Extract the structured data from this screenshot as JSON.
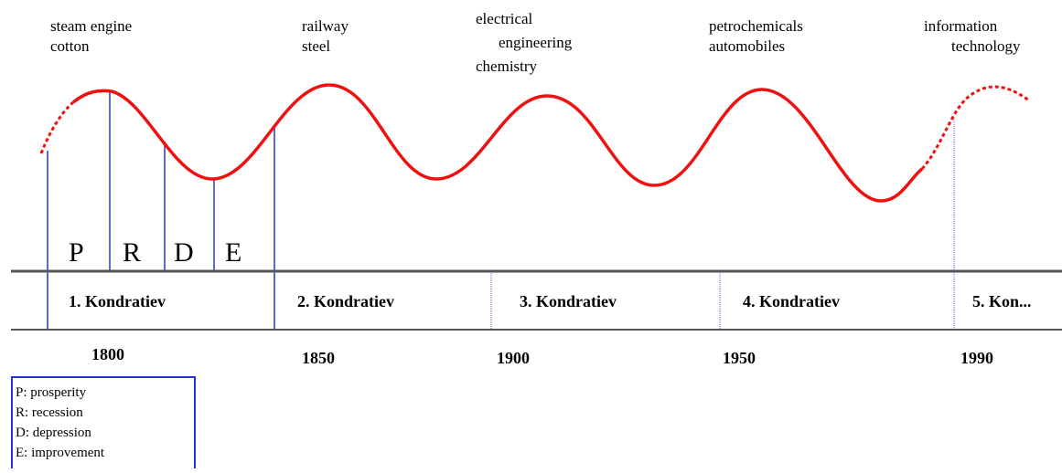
{
  "waves": [
    {
      "innovations": [
        "steam engine",
        "cotton"
      ]
    },
    {
      "innovations": [
        "railway",
        "steel"
      ]
    },
    {
      "innovations": [
        "electrical",
        "engineering",
        "chemistry"
      ]
    },
    {
      "innovations": [
        "petrochemicals",
        "automobiles"
      ]
    },
    {
      "innovations": [
        "information",
        "technology"
      ]
    }
  ],
  "phases": [
    "P",
    "R",
    "D",
    "E"
  ],
  "cycles": [
    "1. Kondratiev",
    "2. Kondratiev",
    "3. Kondratiev",
    "4. Kondratiev",
    "5. Kon..."
  ],
  "years": [
    "1800",
    "1850",
    "1900",
    "1950",
    "1990"
  ],
  "legend": [
    "P: prosperity",
    "R: recession",
    "D: depression",
    "E: improvement"
  ]
}
